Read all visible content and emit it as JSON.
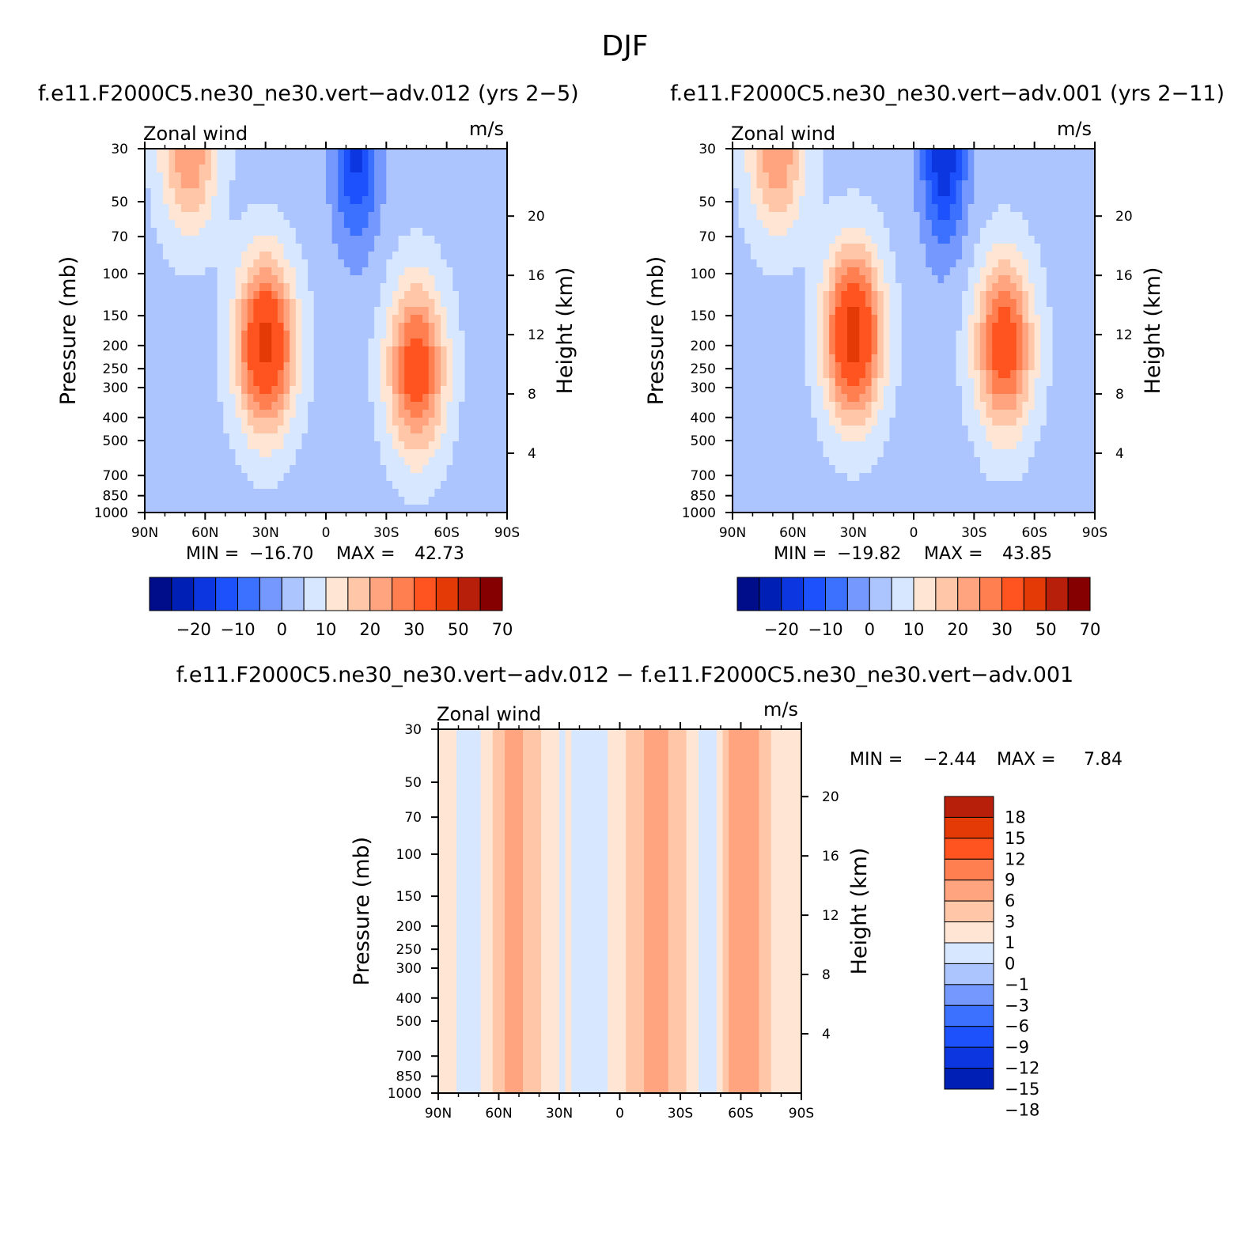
{
  "figure": {
    "title": "DJF",
    "colors": {
      "blues": [
        "#000d8a",
        "#001fb4",
        "#0c36e0",
        "#1c51fc",
        "#3c70ff",
        "#7598ff",
        "#adc5ff",
        "#d6e7ff"
      ],
      "reds": [
        "#ffe6d4",
        "#ffc7a8",
        "#ffa47f",
        "#ff7f50",
        "#ff5420",
        "#e33a06",
        "#b81f0a",
        "#850000"
      ]
    }
  },
  "chart_data": [
    {
      "type": "heatmap",
      "title": "f.e11.F2000C5.ne30_ne30.vert−adv.012 (yrs 2−5)",
      "left_string": "Zonal wind",
      "right_string": "m/s",
      "ylabel": "Pressure (mb)",
      "ylabel_right": "Height (km)",
      "x_ticks": [
        "90N",
        "60N",
        "30N",
        "0",
        "30S",
        "60S",
        "90S"
      ],
      "x_values": [
        90,
        60,
        30,
        0,
        -30,
        -60,
        -90
      ],
      "y_ticks": [
        "30",
        "50",
        "70",
        "100",
        "150",
        "200",
        "250",
        "300",
        "400",
        "500",
        "700",
        "850",
        "1000"
      ],
      "y_values": [
        30,
        50,
        70,
        100,
        150,
        200,
        250,
        300,
        400,
        500,
        700,
        850,
        1000
      ],
      "y_right_ticks": [
        "20",
        "16",
        "12",
        "8",
        "4"
      ],
      "y_right_values": [
        20,
        16,
        12,
        8,
        4
      ],
      "ylim": [
        1000,
        30
      ],
      "y_scale": "log",
      "min_label": "MIN =",
      "max_label": "MAX =",
      "min": "−16.70",
      "max": "42.73",
      "colorbar_levels": [
        -25,
        -20,
        -15,
        -10,
        -5,
        0,
        5,
        10,
        15,
        20,
        25,
        30,
        40,
        50,
        60,
        70
      ],
      "colorbar_labels": [
        "−20",
        "−10",
        "0",
        "10",
        "20",
        "30",
        "50",
        "70"
      ],
      "jets": [
        {
          "lat": 30,
          "p": 200,
          "peak": 42.73
        },
        {
          "lat": -45,
          "p": 250,
          "peak": 35
        },
        {
          "lat": 68,
          "p": 30,
          "peak": 25
        },
        {
          "lat": -15,
          "p": 30,
          "peak": -16.7
        }
      ]
    },
    {
      "type": "heatmap",
      "title": "f.e11.F2000C5.ne30_ne30.vert−adv.001 (yrs 2−11)",
      "left_string": "Zonal wind",
      "right_string": "m/s",
      "ylabel": "Pressure (mb)",
      "ylabel_right": "Height (km)",
      "x_ticks": [
        "90N",
        "60N",
        "30N",
        "0",
        "30S",
        "60S",
        "90S"
      ],
      "x_values": [
        90,
        60,
        30,
        0,
        -30,
        -60,
        -90
      ],
      "y_ticks": [
        "30",
        "50",
        "70",
        "100",
        "150",
        "200",
        "250",
        "300",
        "400",
        "500",
        "700",
        "850",
        "1000"
      ],
      "y_values": [
        30,
        50,
        70,
        100,
        150,
        200,
        250,
        300,
        400,
        500,
        700,
        850,
        1000
      ],
      "y_right_ticks": [
        "20",
        "16",
        "12",
        "8",
        "4"
      ],
      "y_right_values": [
        20,
        16,
        12,
        8,
        4
      ],
      "ylim": [
        1000,
        30
      ],
      "y_scale": "log",
      "min_label": "MIN =",
      "max_label": "MAX =",
      "min": "−19.82",
      "max": "43.85",
      "colorbar_levels": [
        -25,
        -20,
        -15,
        -10,
        -5,
        0,
        5,
        10,
        15,
        20,
        25,
        30,
        40,
        50,
        60,
        70
      ],
      "colorbar_labels": [
        "−20",
        "−10",
        "0",
        "10",
        "20",
        "30",
        "50",
        "70"
      ],
      "jets": [
        {
          "lat": 30,
          "p": 180,
          "peak": 43.85
        },
        {
          "lat": -45,
          "p": 200,
          "peak": 36
        },
        {
          "lat": 68,
          "p": 30,
          "peak": 25
        },
        {
          "lat": -15,
          "p": 30,
          "peak": -19.82
        }
      ]
    },
    {
      "type": "heatmap",
      "title": "f.e11.F2000C5.ne30_ne30.vert−adv.012 − f.e11.F2000C5.ne30_ne30.vert−adv.001",
      "left_string": "Zonal wind",
      "right_string": "m/s",
      "ylabel": "Pressure (mb)",
      "ylabel_right": "Height (km)",
      "x_ticks": [
        "90N",
        "60N",
        "30N",
        "0",
        "30S",
        "60S",
        "90S"
      ],
      "x_values": [
        90,
        60,
        30,
        0,
        -30,
        -60,
        -90
      ],
      "y_ticks": [
        "30",
        "50",
        "70",
        "100",
        "150",
        "200",
        "250",
        "300",
        "400",
        "500",
        "700",
        "850",
        "1000"
      ],
      "y_values": [
        30,
        50,
        70,
        100,
        150,
        200,
        250,
        300,
        400,
        500,
        700,
        850,
        1000
      ],
      "y_right_ticks": [
        "20",
        "16",
        "12",
        "8",
        "4"
      ],
      "y_right_values": [
        20,
        16,
        12,
        8,
        4
      ],
      "ylim": [
        1000,
        30
      ],
      "y_scale": "log",
      "min_label": "MIN =",
      "max_label": "MAX =",
      "min": "−2.44",
      "max": "7.84",
      "colorbar_levels": [
        -18,
        -15,
        -12,
        -9,
        -6,
        -3,
        -1,
        0,
        1,
        3,
        6,
        9,
        12,
        15,
        18
      ],
      "colorbar_labels": [
        "18",
        "15",
        "12",
        "9",
        "6",
        "3",
        "1",
        "0",
        "−1",
        "−3",
        "−6",
        "−9",
        "−12",
        "−15",
        "−18"
      ],
      "bands": [
        {
          "lat": 75,
          "value": -2
        },
        {
          "lat": 52,
          "value": 1.5
        },
        {
          "lat": 30,
          "value": -1
        },
        {
          "lat": 12,
          "value": -2
        },
        {
          "lat": -18,
          "value": 2
        },
        {
          "lat": -45,
          "value": -2
        },
        {
          "lat": -60,
          "value": 2.5
        },
        {
          "lat": -85,
          "value": -0.5
        }
      ]
    }
  ]
}
